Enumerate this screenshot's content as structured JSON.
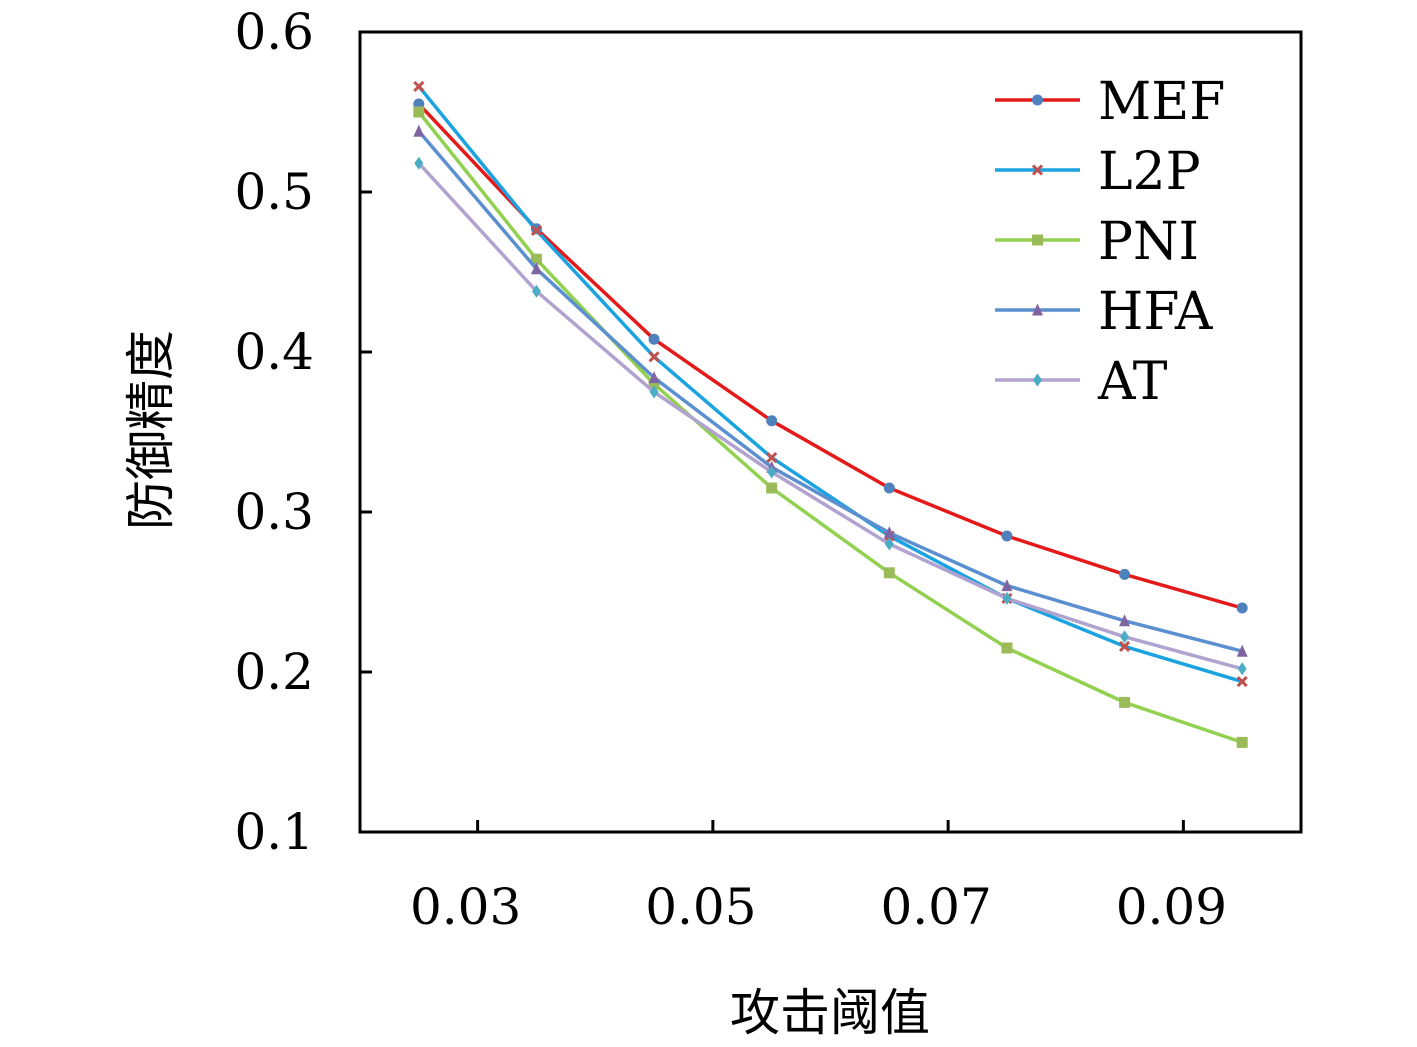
{
  "chart_data": {
    "type": "line",
    "xlabel": "攻击阈值",
    "ylabel": "防御精度",
    "x": [
      0.025,
      0.035,
      0.045,
      0.055,
      0.065,
      0.075,
      0.085,
      0.095
    ],
    "xlim": [
      0.02,
      0.1
    ],
    "ylim": [
      0.1,
      0.6
    ],
    "xticks": [
      0.03,
      0.05,
      0.07,
      0.09
    ],
    "xtick_labels": [
      "0.03",
      "0.05",
      "0.07",
      "0.09"
    ],
    "yticks": [
      0.1,
      0.2,
      0.3,
      0.4,
      0.5,
      0.6
    ],
    "ytick_labels": [
      "0.1",
      "0.2",
      "0.3",
      "0.4",
      "0.5",
      "0.6"
    ],
    "grid": false,
    "legend_position": "top-right",
    "series": [
      {
        "name": "MEF",
        "color": "#e41a1a",
        "marker": "circle",
        "marker_color": "#4f81bd",
        "values": [
          0.555,
          0.477,
          0.408,
          0.357,
          0.315,
          0.285,
          0.261,
          0.24
        ]
      },
      {
        "name": "L2P",
        "color": "#1aa3e0",
        "marker": "x",
        "marker_color": "#c0504d",
        "values": [
          0.566,
          0.476,
          0.397,
          0.334,
          0.285,
          0.246,
          0.216,
          0.194
        ]
      },
      {
        "name": "PNI",
        "color": "#92d050",
        "marker": "square",
        "marker_color": "#9bbb59",
        "values": [
          0.55,
          0.458,
          0.38,
          0.315,
          0.262,
          0.215,
          0.181,
          0.156
        ]
      },
      {
        "name": "HFA",
        "color": "#5b8fcf",
        "marker": "triangle",
        "marker_color": "#8064a2",
        "values": [
          0.538,
          0.452,
          0.384,
          0.328,
          0.287,
          0.254,
          0.232,
          0.213
        ]
      },
      {
        "name": "AT",
        "color": "#b1a3cf",
        "marker": "diamond",
        "marker_color": "#4bacc6",
        "values": [
          0.518,
          0.438,
          0.375,
          0.325,
          0.28,
          0.246,
          0.222,
          0.202
        ]
      }
    ]
  }
}
